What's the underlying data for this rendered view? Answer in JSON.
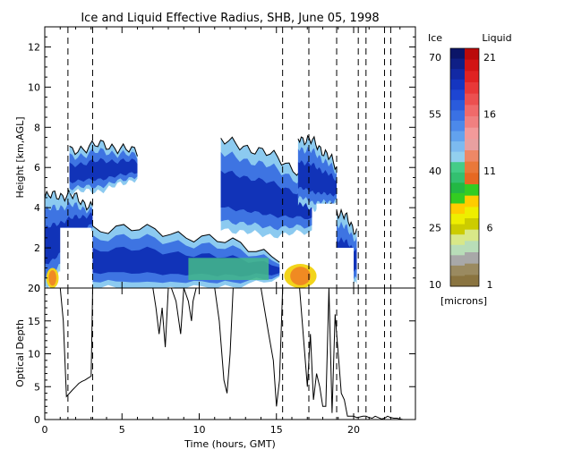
{
  "chart_data": [
    {
      "type": "heatmap",
      "title": "Ice and Liquid Effective Radius, SHB, June 05, 1998",
      "xlabel": "",
      "ylabel": "Height [km,AGL]",
      "xlim": [
        0,
        24
      ],
      "ylim": [
        0,
        13
      ],
      "x_ticks": [
        "0",
        "5",
        "10",
        "15",
        "20"
      ],
      "y_ticks": [
        "0",
        "2",
        "4",
        "6",
        "8",
        "10",
        "12"
      ],
      "dashed_time_markers": [
        1.5,
        3.1,
        15.4,
        17.1,
        18.9,
        20.3,
        20.8,
        22.0,
        22.4
      ],
      "ice_cloud_layers": [
        {
          "x": [
            0.0,
            3.1
          ],
          "bottom": [
            0.0,
            3.0
          ],
          "top": [
            4.5,
            4.0
          ]
        },
        {
          "x": [
            1.6,
            6.0
          ],
          "bottom": [
            4.8,
            5.5
          ],
          "top": [
            6.8,
            6.7
          ]
        },
        {
          "x": [
            3.1,
            15.2
          ],
          "bottom": [
            0.0,
            0.4
          ],
          "top": [
            3.0,
            1.6
          ]
        },
        {
          "x": [
            11.4,
            17.3
          ],
          "bottom": [
            3.0,
            2.8
          ],
          "top": [
            7.3,
            5.4
          ]
        },
        {
          "x": [
            16.4,
            18.9
          ],
          "bottom": [
            4.2,
            4.2
          ],
          "top": [
            7.5,
            6.0
          ]
        },
        {
          "x": [
            18.0,
            20.2
          ],
          "bottom": [
            0.0,
            0.2
          ],
          "top": [
            4.0,
            2.8
          ]
        }
      ],
      "liquid_patches": [
        {
          "x": [
            0.1,
            0.9
          ],
          "height": [
            0.0,
            1.0
          ],
          "radius_microns": 11
        },
        {
          "x": [
            15.5,
            17.6
          ],
          "height": [
            0.0,
            1.2
          ],
          "radius_microns": 6
        }
      ],
      "no_data_regions": [
        {
          "x": [
            1.0,
            3.0
          ],
          "height": [
            0.0,
            3.0
          ]
        },
        {
          "x": [
            17.6,
            18.9
          ],
          "height": [
            0.0,
            4.2
          ]
        },
        {
          "x": [
            18.9,
            20.0
          ],
          "height": [
            0.0,
            2.0
          ]
        }
      ]
    },
    {
      "type": "line",
      "xlabel": "Time (hours, GMT)",
      "ylabel": "Optical Depth",
      "xlim": [
        0,
        24
      ],
      "ylim": [
        0,
        20
      ],
      "x_ticks": [
        "0",
        "5",
        "10",
        "15",
        "20"
      ],
      "y_ticks": [
        "0",
        "5",
        "10",
        "15",
        "20"
      ],
      "series": [
        {
          "x": [
            0.0,
            0.3,
            0.6,
            0.9,
            1.0,
            1.2,
            1.4,
            1.6,
            1.8,
            2.0,
            2.2,
            2.4,
            2.6,
            2.8,
            3.0,
            3.1,
            7.0,
            7.2,
            7.4,
            7.6,
            7.8,
            8.0,
            8.2,
            8.5,
            8.8,
            9.0,
            9.3,
            9.5,
            9.6,
            9.8,
            10.0,
            10.5,
            11.0,
            11.3,
            11.6,
            11.8,
            12.0,
            12.2,
            12.5,
            13.0,
            14.0,
            14.5,
            14.8,
            15.0,
            15.2,
            15.4,
            15.6,
            15.8,
            16.0,
            16.5,
            16.8,
            17.0,
            17.2,
            17.4,
            17.6,
            17.8,
            18.0,
            18.2,
            18.4,
            18.6,
            18.8,
            19.0,
            19.2,
            19.4,
            19.6,
            19.8,
            20.0,
            20.2,
            20.4,
            20.6,
            20.8,
            21.0,
            21.2,
            21.4,
            21.6,
            21.8,
            22.0,
            22.2,
            22.4,
            22.6,
            22.8,
            23.0,
            23.2,
            23.4,
            23.6
          ],
          "y": [
            20,
            20,
            20,
            20,
            20,
            15,
            3.5,
            4.0,
            4.5,
            5.0,
            5.5,
            5.8,
            6.0,
            6.3,
            6.6,
            20,
            20,
            17,
            13,
            17,
            11,
            20,
            20,
            18,
            13,
            20,
            18,
            15,
            18,
            20,
            20,
            20,
            20,
            15,
            6,
            4,
            10,
            20,
            20,
            20,
            20,
            13,
            9,
            2,
            6,
            20,
            20,
            20,
            20,
            20,
            11,
            5,
            13,
            3,
            7,
            5,
            2,
            2,
            20,
            1,
            16,
            10,
            4,
            3,
            0.5,
            0.5,
            0.5,
            0.3,
            0.4,
            0.5,
            0.5,
            0.3,
            0.2,
            0.5,
            0.3,
            0.1,
            0.2,
            0.5,
            0.3,
            0.2,
            0.2,
            0.1,
            0,
            0,
            0
          ]
        }
      ]
    }
  ],
  "colorbar": {
    "ice_label": "Ice",
    "liquid_label": "Liquid",
    "units_label": "[microns]",
    "ice_ticks": [
      "70",
      "55",
      "40",
      "25",
      "10"
    ],
    "liquid_ticks": [
      "21",
      "16",
      "11",
      "6",
      "1"
    ],
    "ice_colors": [
      "#0b1568",
      "#0f1f86",
      "#1229a4",
      "#1535c0",
      "#1d45d2",
      "#2a5bdc",
      "#3a71e4",
      "#4c89ea",
      "#62a2ee",
      "#7cbaf0",
      "#92cfee"
    ],
    "liquid_colors": [
      "#44cc88",
      "#33c070",
      "#22b844",
      "#33cc22",
      "#ffcc00",
      "#eeee00",
      "#cccc00",
      "#d8e888",
      "#b8ddb8",
      "#a8a8a8",
      "#9a8a60",
      "#8a7440"
    ],
    "liquid_hi_colors": [
      "#bb0a0a",
      "#d21414",
      "#e02222",
      "#e83838",
      "#ec5050",
      "#f06a6a",
      "#f08080",
      "#f29a9a",
      "#e8a0a0",
      "#ee8866",
      "#e9783a",
      "#e66822"
    ]
  },
  "colors": {
    "ice_light": "#8ccaf0",
    "ice_mid": "#3e74e2",
    "ice_dark": "#1133b8",
    "green": "#44bb88",
    "liquid_orange": "#f08a22",
    "liquid_yellow": "#f2d41a"
  }
}
